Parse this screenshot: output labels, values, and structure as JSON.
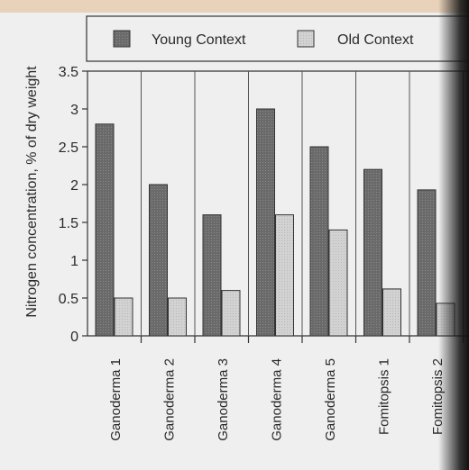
{
  "chart_data": {
    "type": "bar",
    "title": "",
    "xlabel": "",
    "ylabel": "Nitrogen concentration, % of dry weight",
    "ylim": [
      0,
      3.5
    ],
    "yticks": [
      "0",
      "0.5",
      "1",
      "1.5",
      "2",
      "2.5",
      "3",
      "3.5"
    ],
    "grid": "vertical separators between categories",
    "legend_position": "top",
    "categories": [
      "Ganoderma 1",
      "Ganoderma 2",
      "Ganoderma 3",
      "Ganoderma 4",
      "Ganoderma 5",
      "Fomitopsis 1",
      "Fomitopsis 2"
    ],
    "series": [
      {
        "name": "Young Context",
        "color": "#6e6e6e",
        "values": [
          2.8,
          2.0,
          1.6,
          3.0,
          2.5,
          2.2,
          1.93
        ]
      },
      {
        "name": "Old Context",
        "color": "#cfcfcf",
        "values": [
          0.5,
          0.5,
          0.6,
          1.6,
          1.4,
          0.62,
          0.43
        ]
      }
    ]
  }
}
